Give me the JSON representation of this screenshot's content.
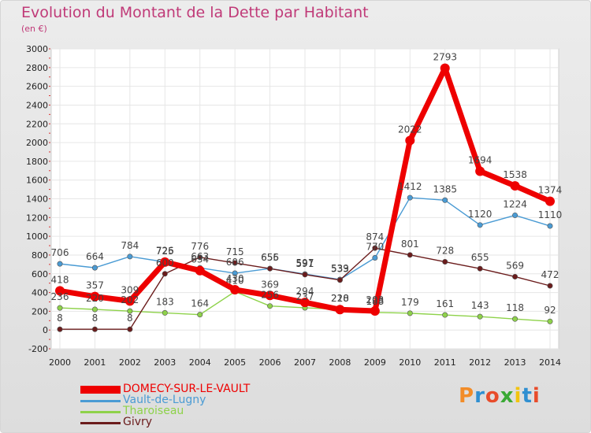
{
  "page": {
    "title": "Evolution du Montant de la Dette par Habitant",
    "subtitle": "(en €)"
  },
  "logo": {
    "text": "Proxiti",
    "colors": [
      "#f28c28",
      "#2f8fd1",
      "#e84c2b",
      "#3aa935",
      "#f2c40f",
      "#2f8fd1",
      "#e84c2b"
    ]
  },
  "chart_data": {
    "type": "line",
    "x": [
      "2000",
      "2001",
      "2002",
      "2003",
      "2004",
      "2005",
      "2006",
      "2007",
      "2008",
      "2009",
      "2010",
      "2011",
      "2012",
      "2013",
      "2014"
    ],
    "ylim": [
      -200,
      3000
    ],
    "yticks": [
      -200,
      0,
      200,
      400,
      600,
      800,
      1000,
      1200,
      1400,
      1600,
      1800,
      2000,
      2200,
      2400,
      2600,
      2800,
      3000
    ],
    "grid": true,
    "legend_position": "bottom-left",
    "series": [
      {
        "name": "DOMECY-SUR-LE-VAULT",
        "color": "#ee0000",
        "values": [
          418,
          357,
          309,
          725,
          634,
          430,
          369,
          294,
          218,
          203,
          2022,
          2793,
          1694,
          1538,
          1374
        ]
      },
      {
        "name": "Vault-de-Lugny",
        "color": "#4a9bd4",
        "values": [
          706,
          664,
          784,
          726,
          663,
          606,
          656,
          597,
          539,
          770,
          1412,
          1385,
          1120,
          1224,
          1110
        ]
      },
      {
        "name": "Tharoiseau",
        "color": "#8ed24a",
        "values": [
          236,
          220,
          202,
          183,
          164,
          410,
          256,
          237,
          220,
          188,
          179,
          161,
          143,
          118,
          92
        ]
      },
      {
        "name": "Givry",
        "color": "#6b1c1c",
        "values": [
          8,
          8,
          8,
          600,
          776,
          715,
          655,
          591,
          533,
          874,
          801,
          728,
          655,
          569,
          472
        ]
      }
    ]
  }
}
